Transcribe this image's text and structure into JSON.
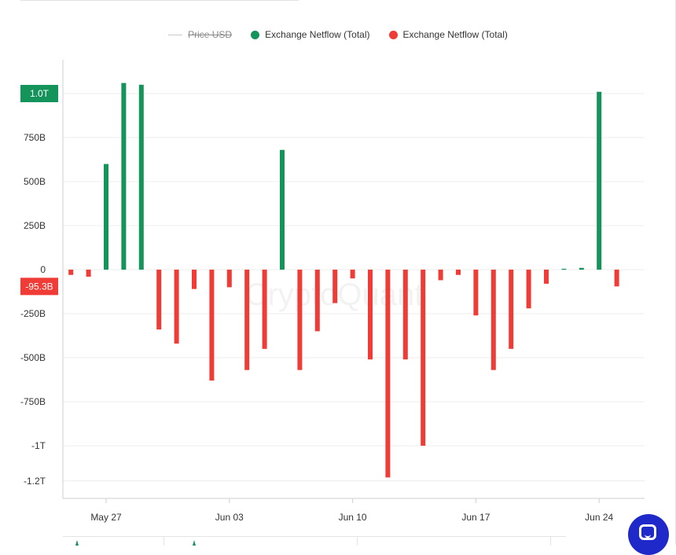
{
  "legend": {
    "items": [
      {
        "label": "Price USD",
        "type": "line",
        "color": "#c9c9c9",
        "disabled": true
      },
      {
        "label": "Exchange Netflow (Total)",
        "type": "dot",
        "color": "#14935a",
        "disabled": false
      },
      {
        "label": "Exchange Netflow (Total)",
        "type": "dot",
        "color": "#f03c36",
        "disabled": false
      }
    ]
  },
  "watermark": "CryptoQuant",
  "colors": {
    "positive": "#14935a",
    "negative": "#f03c36",
    "grid": "#ececec",
    "axis": "#cfcfcf"
  },
  "chart_data": {
    "type": "bar",
    "y_unit": "USD",
    "ylim": [
      -1260000000000,
      1160000000000
    ],
    "yticks": [
      {
        "value": 1000000000000,
        "label": "1.0T"
      },
      {
        "value": 750000000000,
        "label": "750B"
      },
      {
        "value": 500000000000,
        "label": "500B"
      },
      {
        "value": 250000000000,
        "label": "250B"
      },
      {
        "value": 0,
        "label": "0"
      },
      {
        "value": -250000000000,
        "label": "-250B"
      },
      {
        "value": -500000000000,
        "label": "-500B"
      },
      {
        "value": -750000000000,
        "label": "-750B"
      },
      {
        "value": -1000000000000,
        "label": "-1T"
      },
      {
        "value": -1200000000000,
        "label": "-1.2T"
      }
    ],
    "xticks": [
      {
        "date": "2024-05-27",
        "label": "May 27"
      },
      {
        "date": "2024-06-03",
        "label": "Jun 03"
      },
      {
        "date": "2024-06-10",
        "label": "Jun 10"
      },
      {
        "date": "2024-06-17",
        "label": "Jun 17"
      },
      {
        "date": "2024-06-24",
        "label": "Jun 24"
      }
    ],
    "series": [
      {
        "points": [
          {
            "date": "2024-05-25",
            "value": -30000000000
          },
          {
            "date": "2024-05-26",
            "value": -40000000000
          },
          {
            "date": "2024-05-27",
            "value": 600000000000
          },
          {
            "date": "2024-05-28",
            "value": 1060000000000
          },
          {
            "date": "2024-05-29",
            "value": 1050000000000
          },
          {
            "date": "2024-05-30",
            "value": -340000000000
          },
          {
            "date": "2024-05-31",
            "value": -420000000000
          },
          {
            "date": "2024-06-01",
            "value": -110000000000
          },
          {
            "date": "2024-06-02",
            "value": -630000000000
          },
          {
            "date": "2024-06-03",
            "value": -100000000000
          },
          {
            "date": "2024-06-04",
            "value": -570000000000
          },
          {
            "date": "2024-06-05",
            "value": -450000000000
          },
          {
            "date": "2024-06-06",
            "value": 680000000000
          },
          {
            "date": "2024-06-07",
            "value": -570000000000
          },
          {
            "date": "2024-06-08",
            "value": -350000000000
          },
          {
            "date": "2024-06-09",
            "value": -190000000000
          },
          {
            "date": "2024-06-10",
            "value": -50000000000
          },
          {
            "date": "2024-06-11",
            "value": -510000000000
          },
          {
            "date": "2024-06-12",
            "value": -1180000000000
          },
          {
            "date": "2024-06-13",
            "value": -510000000000
          },
          {
            "date": "2024-06-14",
            "value": -1000000000000
          },
          {
            "date": "2024-06-15",
            "value": -60000000000
          },
          {
            "date": "2024-06-16",
            "value": -30000000000
          },
          {
            "date": "2024-06-17",
            "value": -260000000000
          },
          {
            "date": "2024-06-18",
            "value": -570000000000
          },
          {
            "date": "2024-06-19",
            "value": -450000000000
          },
          {
            "date": "2024-06-20",
            "value": -220000000000
          },
          {
            "date": "2024-06-21",
            "value": -80000000000
          },
          {
            "date": "2024-06-22",
            "value": 5000000000
          },
          {
            "date": "2024-06-23",
            "value": 10000000000
          },
          {
            "date": "2024-06-24",
            "value": 1010000000000
          },
          {
            "date": "2024-06-25",
            "value": -95300000000
          }
        ]
      }
    ],
    "badges": [
      {
        "label": "1.0T",
        "value": 1000000000000,
        "color": "#14935a"
      },
      {
        "label": "-95.3B",
        "value": -95300000000,
        "color": "#f03c36"
      }
    ],
    "grid": true,
    "legend_position": "top-center"
  }
}
